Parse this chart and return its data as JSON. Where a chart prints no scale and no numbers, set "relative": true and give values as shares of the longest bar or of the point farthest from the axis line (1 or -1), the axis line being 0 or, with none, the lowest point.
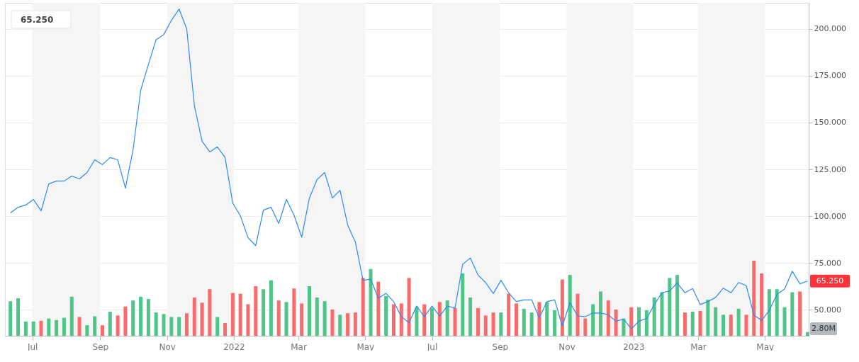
{
  "chart_data": [
    {
      "type": "line",
      "x": [
        "2021-06-11",
        "2021-06-18",
        "2021-06-25",
        "2021-07-02",
        "2021-07-09",
        "2021-07-16",
        "2021-07-23",
        "2021-07-30",
        "2021-08-06",
        "2021-08-13",
        "2021-08-20",
        "2021-08-27",
        "2021-09-03",
        "2021-09-10",
        "2021-09-17",
        "2021-09-24",
        "2021-10-01",
        "2021-10-08",
        "2021-10-15",
        "2021-10-22",
        "2021-10-29",
        "2021-11-05",
        "2021-11-12",
        "2021-11-19",
        "2021-11-26",
        "2021-12-03",
        "2021-12-10",
        "2021-12-17",
        "2021-12-24",
        "2021-12-31",
        "2022-01-07",
        "2022-01-14",
        "2022-01-21",
        "2022-01-28",
        "2022-02-04",
        "2022-02-11",
        "2022-02-18",
        "2022-02-25",
        "2022-03-04",
        "2022-03-11",
        "2022-03-18",
        "2022-03-25",
        "2022-04-01",
        "2022-04-08",
        "2022-04-15",
        "2022-04-22",
        "2022-04-29",
        "2022-05-06",
        "2022-05-13",
        "2022-05-20",
        "2022-05-27",
        "2022-06-03",
        "2022-06-10",
        "2022-06-17",
        "2022-06-24",
        "2022-07-01",
        "2022-07-08",
        "2022-07-15",
        "2022-07-22",
        "2022-07-29",
        "2022-08-05",
        "2022-08-12",
        "2022-08-19",
        "2022-08-26",
        "2022-09-02",
        "2022-09-09",
        "2022-09-16",
        "2022-09-23",
        "2022-09-30",
        "2022-10-07",
        "2022-10-14",
        "2022-10-21",
        "2022-10-28",
        "2022-11-04",
        "2022-11-11",
        "2022-11-18",
        "2022-11-25",
        "2022-12-02",
        "2022-12-09",
        "2022-12-16",
        "2022-12-23",
        "2022-12-30",
        "2023-01-06",
        "2023-01-13",
        "2023-01-20",
        "2023-01-27",
        "2023-02-03",
        "2023-02-10",
        "2023-02-17",
        "2023-02-24",
        "2023-03-03",
        "2023-03-10",
        "2023-03-17",
        "2023-03-24",
        "2023-03-31",
        "2023-04-07",
        "2023-04-14",
        "2023-04-21",
        "2023-04-28",
        "2023-05-05",
        "2023-05-12",
        "2023-05-19",
        "2023-05-26",
        "2023-06-02",
        "2023-06-09"
      ],
      "series": [
        {
          "color": "#2a8af6",
          "values": [
            101.7,
            104.7,
            105.9,
            108.9,
            102.8,
            117.2,
            118.7,
            118.7,
            121.4,
            119.9,
            123.3,
            130.1,
            127.5,
            131.3,
            130.1,
            114.9,
            135.5,
            167.4,
            181,
            194.3,
            197,
            204.6,
            210.7,
            200,
            159,
            140,
            134.3,
            137,
            131.3,
            107,
            100.1,
            88.4,
            84.2,
            103.2,
            104.7,
            96,
            108.9,
            100.5,
            88.7,
            109.6,
            119.5,
            123.3,
            109.6,
            113.8,
            95.2,
            86.1,
            65.6,
            66.3,
            56.1,
            58.7,
            54.2,
            46.2,
            43,
            51.9,
            46.2,
            51.9,
            46.6,
            51.9,
            50.8,
            74.2,
            77.6,
            68.5,
            64.4,
            58.6,
            65.7,
            59,
            54.3,
            55.2,
            55.2,
            45.7,
            54.3,
            55.2,
            41.3,
            53.7,
            46.7,
            46.2,
            48.2,
            48.2,
            47.2,
            43.8,
            44.9,
            39.7,
            43.8,
            45.3,
            52.7,
            59,
            60,
            64.2,
            59,
            61.3,
            52.7,
            54.3,
            56.5,
            61.5,
            59,
            64.5,
            62.8,
            47,
            44.2,
            49.5,
            58.2,
            61,
            70.5,
            63.8,
            65.25
          ],
          "value_labels": [
            null,
            null,
            null,
            null,
            null,
            null,
            null,
            null,
            null,
            null,
            null,
            null,
            null,
            null,
            null,
            null,
            null,
            null,
            null,
            null,
            null,
            null,
            null,
            null,
            null,
            null,
            null,
            null,
            null,
            null,
            null,
            null,
            null,
            null,
            null,
            null,
            null,
            null,
            null,
            null,
            null,
            null,
            null,
            null,
            null,
            null,
            null,
            null,
            null,
            null,
            null,
            null,
            null,
            null,
            null,
            null,
            null,
            null,
            null,
            null,
            null,
            null,
            null,
            null,
            null,
            null,
            null,
            null,
            null,
            null,
            null,
            null,
            null,
            null,
            null,
            null,
            null,
            null,
            null,
            null,
            null,
            null,
            null,
            null,
            null,
            null,
            null,
            null,
            null,
            null,
            null,
            null,
            null,
            null,
            null,
            null,
            null,
            null,
            null,
            null,
            null,
            null,
            null,
            null,
            "65.250"
          ]
        }
      ],
      "xlim": [
        "2021-06-06",
        "2023-06-10"
      ],
      "xticks": [
        {
          "value": "2021-07-01",
          "label": "Jul"
        },
        {
          "value": "2021-09-01",
          "label": "Sep"
        },
        {
          "value": "2021-11-01",
          "label": "Nov"
        },
        {
          "value": "2022-01-01",
          "label": "2022"
        },
        {
          "value": "2022-03-01",
          "label": "Mar"
        },
        {
          "value": "2022-05-01",
          "label": "May"
        },
        {
          "value": "2022-07-01",
          "label": "Jul"
        },
        {
          "value": "2022-09-01",
          "label": "Sep"
        },
        {
          "value": "2022-11-01",
          "label": "Nov"
        },
        {
          "value": "2023-01-01",
          "label": "2023"
        },
        {
          "value": "2023-03-01",
          "label": "Mar"
        },
        {
          "value": "2023-05-01",
          "label": "May"
        }
      ],
      "ylim": [
        36,
        214
      ],
      "yticks": [
        {
          "value": 50,
          "label": "50.000"
        },
        {
          "value": 75,
          "label": "75.000"
        },
        {
          "value": 100,
          "label": "100.000"
        },
        {
          "value": 125,
          "label": "125.000"
        },
        {
          "value": 150,
          "label": "150.000"
        },
        {
          "value": 175,
          "label": "175.000"
        },
        {
          "value": 200,
          "label": "200.000"
        }
      ],
      "bands": [
        {
          "axis": "x",
          "from": "2021-07-01",
          "to": "2021-09-01",
          "color": "#f5f5f5"
        },
        {
          "axis": "x",
          "from": "2021-11-01",
          "to": "2022-01-01",
          "color": "#f5f5f5"
        },
        {
          "axis": "x",
          "from": "2022-03-01",
          "to": "2022-05-01",
          "color": "#f5f5f5"
        },
        {
          "axis": "x",
          "from": "2022-07-01",
          "to": "2022-09-01",
          "color": "#f5f5f5"
        },
        {
          "axis": "x",
          "from": "2022-11-01",
          "to": "2023-01-01",
          "color": "#f5f5f5"
        },
        {
          "axis": "x",
          "from": "2023-03-01",
          "to": "2023-05-01",
          "color": "#f5f5f5"
        }
      ],
      "grid": "y"
    },
    {
      "type": "bar",
      "relative": true,
      "tick_labels": false,
      "categories": [
        null,
        null,
        null,
        null,
        null,
        null,
        null,
        null,
        null,
        null,
        null,
        null,
        null,
        null,
        null,
        null,
        null,
        null,
        null,
        null,
        null,
        null,
        null,
        null,
        null,
        null,
        null,
        null,
        null,
        null,
        null,
        null,
        null,
        null,
        null,
        null,
        null,
        null,
        null,
        null,
        null,
        null,
        null,
        null,
        null,
        null,
        null,
        null,
        null,
        null,
        null,
        null,
        null,
        null,
        null,
        null,
        null,
        null,
        null,
        null,
        null,
        null,
        null,
        null,
        null,
        null,
        null,
        null,
        null,
        null,
        null,
        null,
        null,
        null,
        null,
        null,
        null,
        null,
        null,
        null,
        null,
        null,
        null,
        null,
        null,
        null,
        null,
        null,
        null,
        null,
        null,
        null,
        null,
        null,
        null,
        null,
        null,
        null,
        null,
        null,
        null,
        null,
        null,
        null,
        null
      ],
      "colors": [
        "#4fc587",
        "#4fc587",
        "#4fc587",
        "#4fc587",
        "#f86b6b",
        "#4fc587",
        "#4fc587",
        "#4fc587",
        "#4fc587",
        "#f86b6b",
        "#4fc587",
        "#4fc587",
        "#f86b6b",
        "#4fc587",
        "#f86b6b",
        "#f86b6b",
        "#4fc587",
        "#4fc587",
        "#4fc587",
        "#4fc587",
        "#4fc587",
        "#4fc587",
        "#4fc587",
        "#f86b6b",
        "#f86b6b",
        "#f86b6b",
        "#f86b6b",
        "#4fc587",
        "#f86b6b",
        "#f86b6b",
        "#f86b6b",
        "#f86b6b",
        "#f86b6b",
        "#4fc587",
        "#4fc587",
        "#f86b6b",
        "#4fc587",
        "#f86b6b",
        "#f86b6b",
        "#4fc587",
        "#4fc587",
        "#4fc587",
        "#f86b6b",
        "#4fc587",
        "#f86b6b",
        "#f86b6b",
        "#f86b6b",
        "#4fc587",
        "#f86b6b",
        "#4fc587",
        "#f86b6b",
        "#f86b6b",
        "#f86b6b",
        "#4fc587",
        "#f86b6b",
        "#4fc587",
        "#f86b6b",
        "#4fc587",
        "#f86b6b",
        "#4fc587",
        "#4fc587",
        "#f86b6b",
        "#f86b6b",
        "#f86b6b",
        "#4fc587",
        "#f86b6b",
        "#f86b6b",
        "#4fc587",
        "#4fc587",
        "#f86b6b",
        "#4fc587",
        "#4fc587",
        "#f86b6b",
        "#4fc587",
        "#f86b6b",
        "#f86b6b",
        "#4fc587",
        "#4fc587",
        "#f86b6b",
        "#f86b6b",
        "#4fc587",
        "#f86b6b",
        "#4fc587",
        "#4fc587",
        "#4fc587",
        "#4fc587",
        "#4fc587",
        "#4fc587",
        "#f86b6b",
        "#4fc587",
        "#f86b6b",
        "#4fc587",
        "#4fc587",
        "#4fc587",
        "#f86b6b",
        "#4fc587",
        "#f86b6b",
        "#f86b6b",
        "#f86b6b",
        "#4fc587",
        "#4fc587",
        "#4fc587",
        "#4fc587",
        "#f86b6b",
        "#4fc587"
      ],
      "values": [
        0.46,
        0.5,
        0.19,
        0.19,
        0.2,
        0.23,
        0.21,
        0.24,
        0.52,
        0.25,
        0.14,
        0.26,
        0.14,
        0.32,
        0.27,
        0.39,
        0.47,
        0.52,
        0.49,
        0.31,
        0.29,
        0.25,
        0.25,
        0.3,
        0.51,
        0.44,
        0.62,
        0.25,
        0.17,
        0.57,
        0.56,
        0.42,
        0.66,
        0.62,
        0.74,
        0.47,
        0.45,
        0.63,
        0.43,
        0.66,
        0.51,
        0.46,
        0.35,
        0.28,
        0.3,
        0.31,
        0.77,
        0.89,
        0.72,
        0.53,
        0.42,
        0.43,
        0.77,
        0.38,
        0.42,
        0.37,
        0.45,
        0.47,
        0.37,
        0.83,
        0.51,
        0.37,
        0.27,
        0.31,
        0.31,
        0.56,
        0.43,
        0.36,
        0.31,
        0.45,
        0.45,
        0.34,
        0.75,
        0.81,
        0.56,
        0.23,
        0.42,
        0.59,
        0.47,
        0.35,
        0.23,
        0.38,
        0.38,
        0.34,
        0.51,
        0.58,
        0.77,
        0.81,
        0.31,
        0.32,
        0.33,
        0.48,
        0.38,
        0.28,
        0.28,
        0.36,
        0.28,
        1,
        0.83,
        0.62,
        0.62,
        0.38,
        0.58,
        0.59,
        0.05
      ],
      "annotations": [
        "2.80M"
      ]
    }
  ]
}
